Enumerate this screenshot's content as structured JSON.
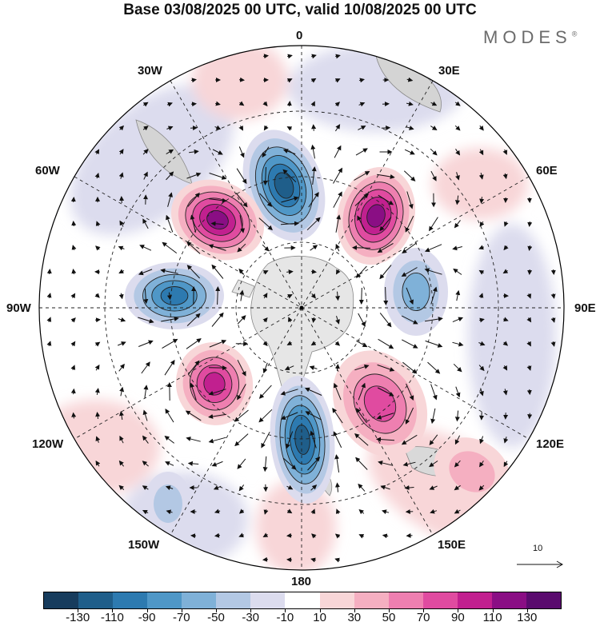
{
  "title": "Base 03/08/2025 00 UTC, valid 10/08/2025 00 UTC",
  "brand": "MODES",
  "brand_mark": "®",
  "longitude_labels": {
    "lon_0": "0",
    "lon_30e": "30E",
    "lon_60e": "60E",
    "lon_90e": "90E",
    "lon_120e": "120E",
    "lon_150e": "150E",
    "lon_180": "180",
    "lon_150w": "150W",
    "lon_120w": "120W",
    "lon_90w": "90W",
    "lon_60w": "60W",
    "lon_30w": "30W"
  },
  "reference_vector": {
    "value": "10"
  },
  "colorbar": {
    "colors": [
      "#173c5d",
      "#1f5e8a",
      "#2d7ab0",
      "#4f97c7",
      "#7fb1d8",
      "#b3c8e4",
      "#dcdcee",
      "#ffffff",
      "#f8d6d8",
      "#f5afc1",
      "#ee7fb0",
      "#e04ba0",
      "#c1208f",
      "#8a0e84",
      "#5a0b6e"
    ],
    "ticks": [
      "-130",
      "-110",
      "-90",
      "-70",
      "-50",
      "-30",
      "-10",
      "10",
      "30",
      "50",
      "70",
      "90",
      "110",
      "130"
    ]
  },
  "anomaly_centers": [
    {
      "label": "low",
      "value": -120
    },
    {
      "label": "high",
      "value": 120
    },
    {
      "label": "high",
      "value": 110
    },
    {
      "label": "low",
      "value": -95
    },
    {
      "label": "low",
      "value": -65
    },
    {
      "label": "high",
      "value": 90
    },
    {
      "label": "low",
      "value": -110
    },
    {
      "label": "high",
      "value": 75
    },
    {
      "label": "low",
      "value": -40
    },
    {
      "label": "high",
      "value": 35
    }
  ]
}
